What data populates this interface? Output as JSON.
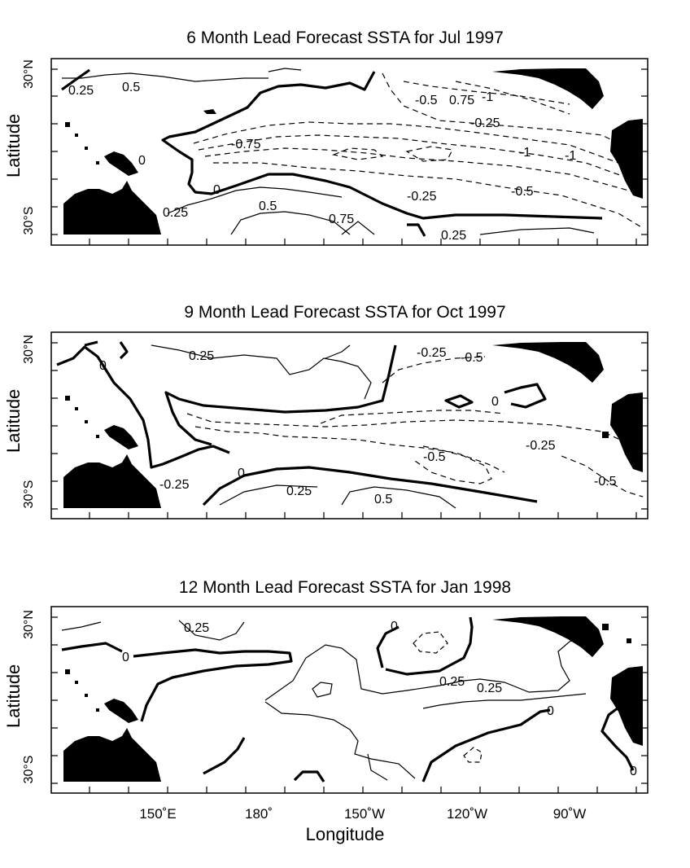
{
  "panels": [
    {
      "title": "6 Month Lead Forecast SSTA for Jul 1997",
      "ylabel": "Latitude",
      "lat_top": "30°N",
      "lat_bottom": "30°S",
      "labels": [
        "0.25",
        "0.5",
        "-0.5",
        "0.75",
        "-1",
        "-0.25",
        "-0.75",
        "-1",
        "-1",
        "0",
        "0",
        "-0.25",
        "-0.5",
        "0.25",
        "0.5",
        "0.75",
        "0.25"
      ]
    },
    {
      "title": "9 Month Lead Forecast SSTA for Oct 1997",
      "ylabel": "Latitude",
      "lat_top": "30°N",
      "lat_bottom": "30°S",
      "labels": [
        "0",
        "0.25",
        "-0.25",
        "-0.5",
        "0",
        "-0.25",
        "-0.5",
        "-0.25",
        "-0.5",
        "0",
        "0.25",
        "0.5"
      ]
    },
    {
      "title": "12 Month Lead Forecast SSTA for Jan 1998",
      "ylabel": "Latitude",
      "lat_top": "30°N",
      "lat_bottom": "30°S",
      "labels": [
        "0.25",
        "0",
        "0",
        "0.25",
        "0.25",
        "0",
        "0"
      ]
    }
  ],
  "x_axis": {
    "label": "Longitude",
    "ticks": [
      "150˚E",
      "180˚",
      "150˚W",
      "120˚W",
      "90˚W"
    ]
  },
  "colors": {
    "land": "#000000",
    "contour": "#000000",
    "background": "#ffffff"
  }
}
